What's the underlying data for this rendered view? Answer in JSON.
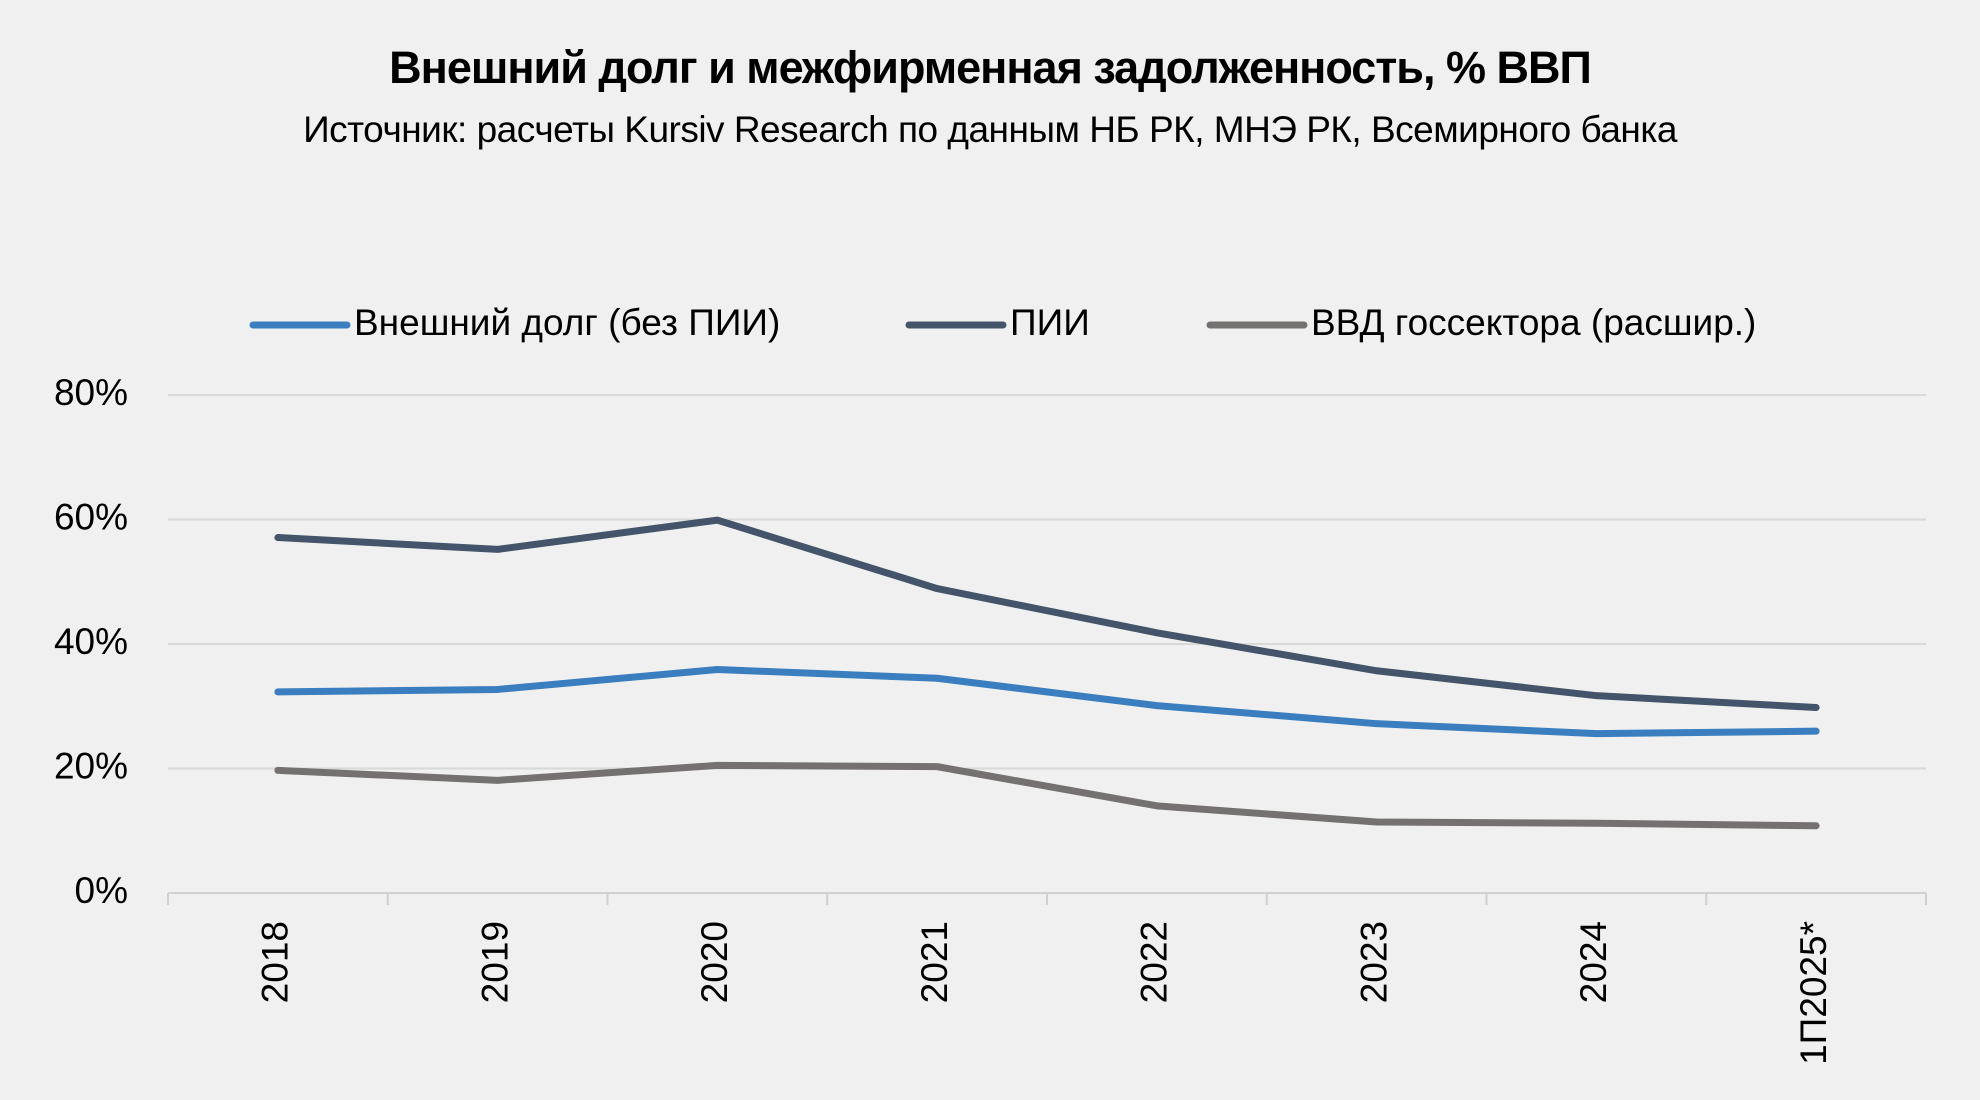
{
  "chart_data": {
    "type": "line",
    "title": "Внешний долг и межфирменная задолженность, % ВВП",
    "subtitle": "Источник: расчеты Kursiv Research по данным НБ РК, МНЭ РК, Всемирного банка",
    "categories": [
      "2018",
      "2019",
      "2020",
      "2021",
      "2022",
      "2023",
      "2024",
      "1П2025*"
    ],
    "series": [
      {
        "name": "Внешний долг (без ПИИ)",
        "color": "#3a7ebf",
        "values": [
          32.3,
          32.7,
          35.9,
          34.5,
          30.1,
          27.2,
          25.6,
          26.0
        ]
      },
      {
        "name": "ПИИ",
        "color": "#44546a",
        "values": [
          57.1,
          55.2,
          59.9,
          48.9,
          41.8,
          35.7,
          31.7,
          29.8
        ]
      },
      {
        "name": "ВВД госсектора (расшир.)",
        "color": "#767171",
        "values": [
          19.7,
          18.1,
          20.5,
          20.3,
          14.0,
          11.4,
          11.2,
          10.8
        ]
      }
    ],
    "ylim": [
      0,
      80
    ],
    "yticks": [
      {
        "value": 0,
        "label": "0%"
      },
      {
        "value": 20,
        "label": "20%"
      },
      {
        "value": 40,
        "label": "40%"
      },
      {
        "value": 60,
        "label": "60%"
      },
      {
        "value": 80,
        "label": "80%"
      }
    ],
    "grid": true,
    "legend": "top"
  }
}
